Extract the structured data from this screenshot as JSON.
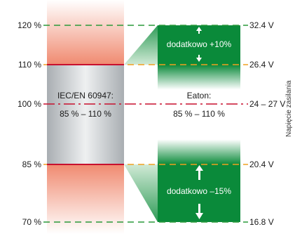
{
  "percent_labels": {
    "p120": "120 %",
    "p110": "110 %",
    "p100": "100 %",
    "p85": "85 %",
    "p70": "70 %"
  },
  "voltage_labels": {
    "v32": "32.4 V",
    "v26": "26.4 V",
    "v24": "24 – 27 V",
    "v20": "20.4 V",
    "v16": "16.8 V"
  },
  "left_box": {
    "line1": "IEC/EN 60947:",
    "line2": "85 % – 110 %"
  },
  "right_box": {
    "line1": "Eaton:",
    "line2": "85 % – 110 %"
  },
  "extra_top": "dodatkowo +10%",
  "extra_bottom": "dodatkowo –15%",
  "side_text": "Napięcie zasilania",
  "colors": {
    "green": "#0a8a3a",
    "green_dark": "#08702f",
    "grey": "#b6babd",
    "salmon": "#f08a70",
    "red_line": "#c8102e",
    "orange_dash": "#f0a020",
    "green_dash": "#2a9a3a"
  }
}
